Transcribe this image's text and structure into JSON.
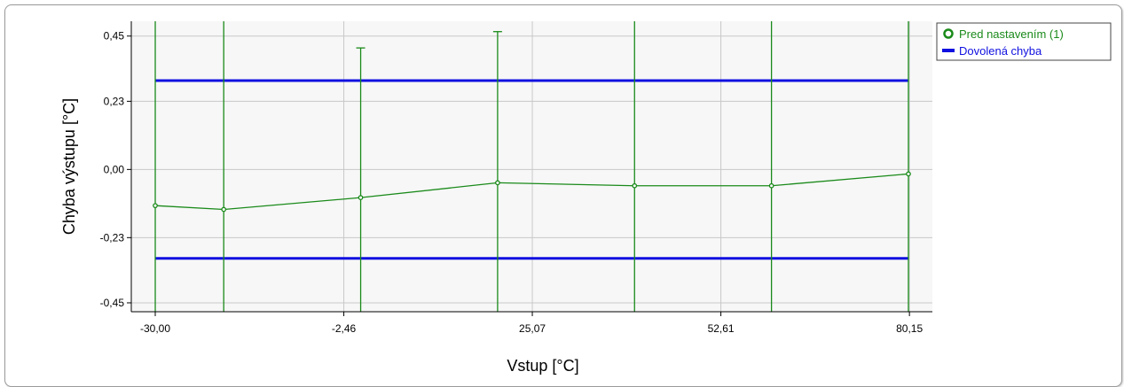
{
  "chart_data": {
    "type": "line",
    "title": "",
    "xlabel": "Vstup [°C]",
    "ylabel": "Chyba výstupu [°C]",
    "xlim": [
      -33.5,
      83.5
    ],
    "ylim": [
      -0.48,
      0.5
    ],
    "x_ticks": [
      {
        "value": -30.0,
        "label": "-30,00"
      },
      {
        "value": -2.46,
        "label": "-2,46"
      },
      {
        "value": 25.07,
        "label": "25,07"
      },
      {
        "value": 52.61,
        "label": "52,61"
      },
      {
        "value": 80.15,
        "label": "80,15"
      }
    ],
    "y_ticks": [
      {
        "value": 0.45,
        "label": "0,45"
      },
      {
        "value": 0.23,
        "label": "0,23"
      },
      {
        "value": 0.0,
        "label": "0,00"
      },
      {
        "value": -0.23,
        "label": "-0,23"
      },
      {
        "value": -0.45,
        "label": "-0,45"
      }
    ],
    "grid": true,
    "legend_position": "top-right",
    "series": [
      {
        "name": "Pred nastavením (1)",
        "color": "#1a8a1a",
        "x": [
          -30.0,
          -20.0,
          0.0,
          20.0,
          40.0,
          60.0,
          80.0
        ],
        "y": [
          -0.122,
          -0.135,
          -0.095,
          -0.045,
          -0.055,
          -0.055,
          -0.015
        ],
        "error_bars": [
          {
            "upper": 0.5,
            "lower": -0.48
          },
          {
            "upper": 0.5,
            "lower": -0.48
          },
          {
            "upper": 0.41,
            "lower": -0.48
          },
          {
            "upper": 0.465,
            "lower": -0.48
          },
          {
            "upper": 0.5,
            "lower": -0.48
          },
          {
            "upper": 0.5,
            "lower": -0.48
          },
          {
            "upper": 0.5,
            "lower": -0.48
          }
        ]
      },
      {
        "name": "Dovolená chyba",
        "color": "#1010e0",
        "limits": [
          0.3,
          -0.3
        ],
        "x_range": [
          -30.0,
          80.0
        ]
      }
    ]
  }
}
